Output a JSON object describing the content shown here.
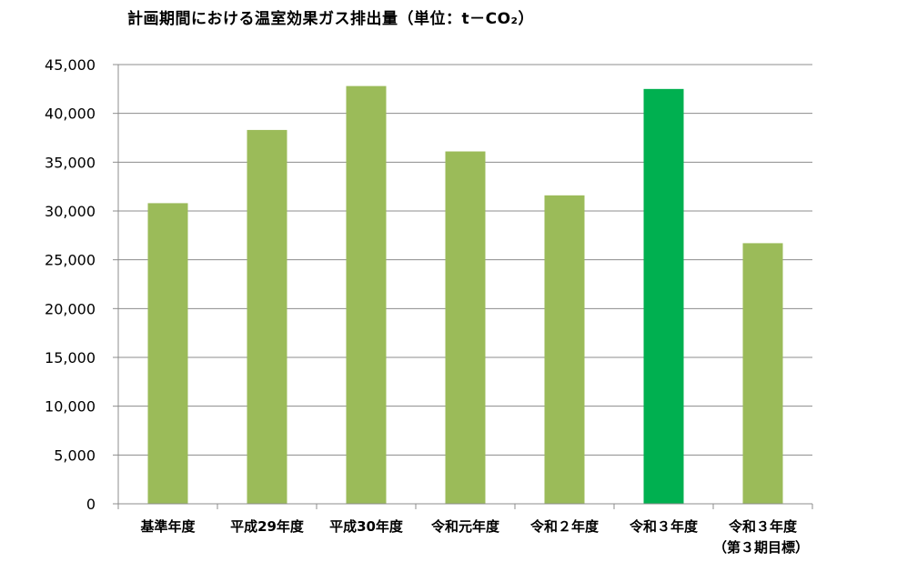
{
  "chart_data": {
    "type": "bar",
    "title": "計画期間における温室効果ガス排出量（単位：t－CO₂）",
    "categories": [
      "基準年度",
      "平成29年度",
      "平成30年度",
      "令和元年度",
      "令和２年度",
      "令和３年度",
      "令和３年度"
    ],
    "category_sublabels": [
      "",
      "",
      "",
      "",
      "",
      "",
      "（第３期目標）"
    ],
    "values": [
      30800,
      38300,
      42800,
      36100,
      31600,
      42500,
      26700
    ],
    "bar_colors": [
      "#9bbb59",
      "#9bbb59",
      "#9bbb59",
      "#9bbb59",
      "#9bbb59",
      "#00b050",
      "#9bbb59"
    ],
    "ylim": [
      0,
      45000
    ],
    "yticks": [
      0,
      5000,
      10000,
      15000,
      20000,
      25000,
      30000,
      35000,
      40000,
      45000
    ],
    "ytick_labels": [
      "0",
      "5,000",
      "10,000",
      "15,000",
      "20,000",
      "25,000",
      "30,000",
      "35,000",
      "40,000",
      "45,000"
    ],
    "grid": true,
    "xlabel": "",
    "ylabel": ""
  }
}
